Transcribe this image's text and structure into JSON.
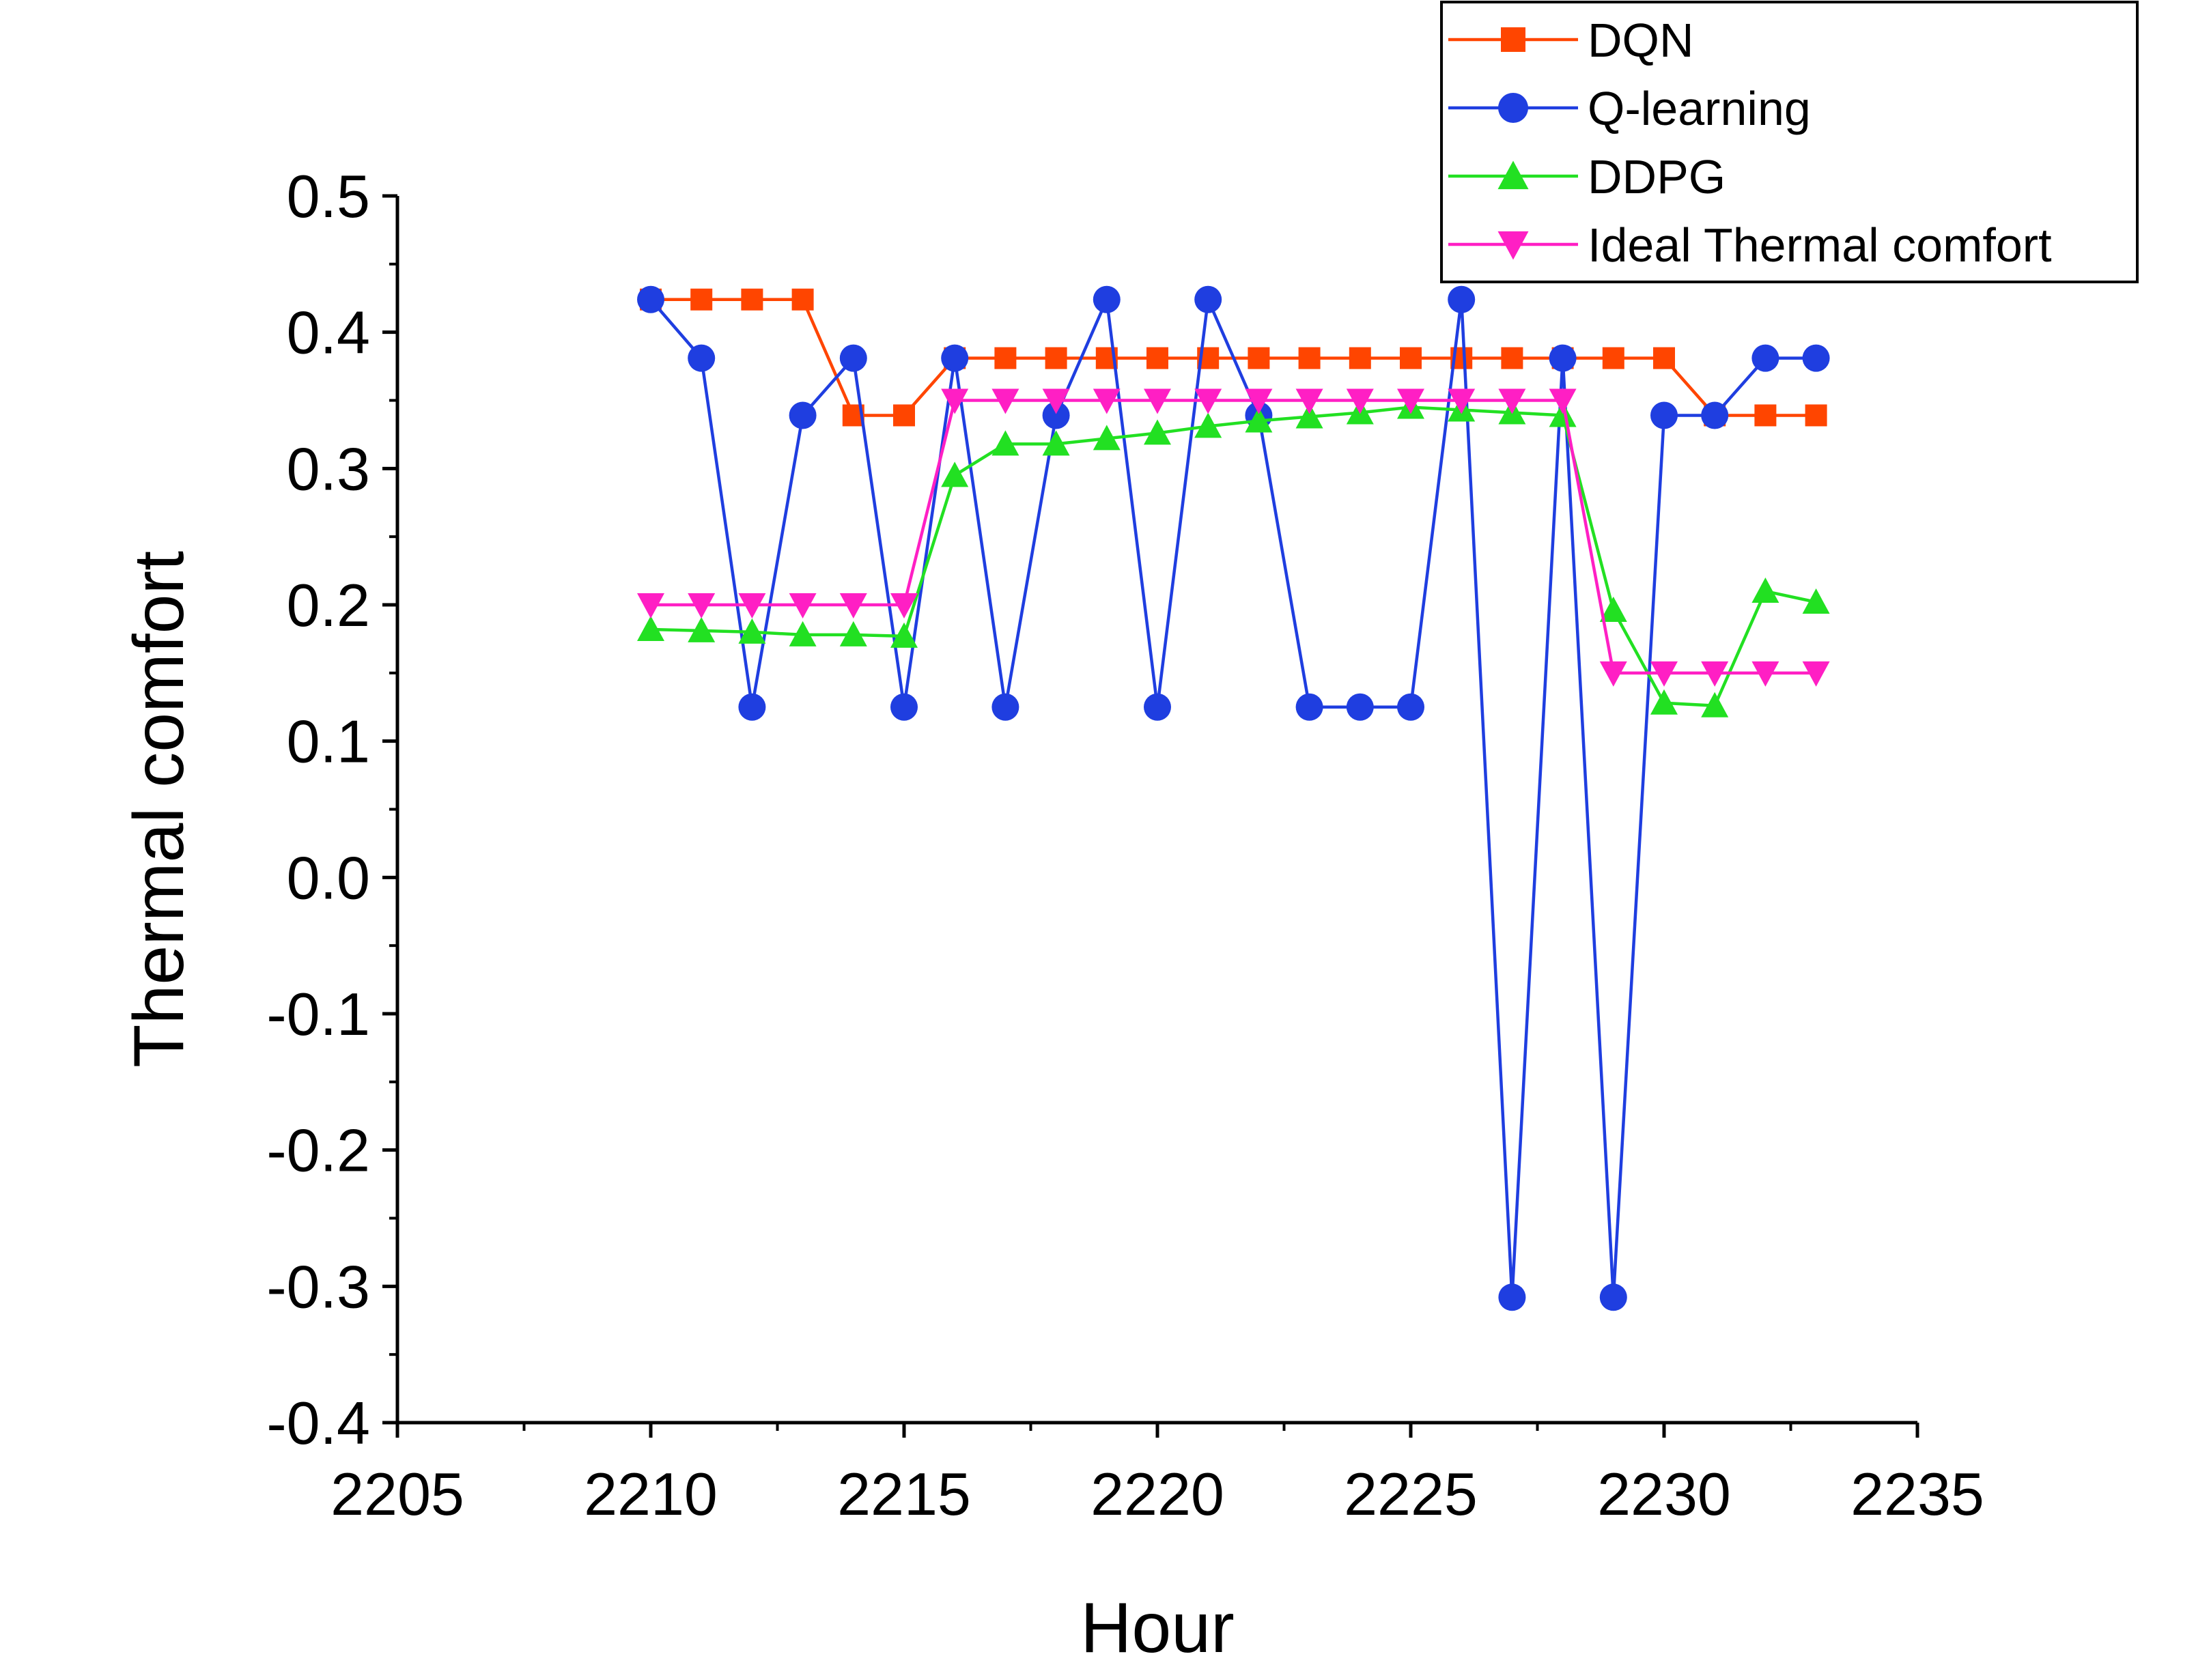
{
  "chart_data": {
    "type": "line",
    "xlabel": "Hour",
    "ylabel": "Thermal comfort",
    "xlim": [
      2205,
      2235
    ],
    "ylim": [
      -0.4,
      0.5
    ],
    "x_ticks": [
      "2205",
      "2210",
      "2215",
      "2220",
      "2225",
      "2230",
      "2235"
    ],
    "y_ticks": [
      "-0.4",
      "-0.3",
      "-0.2",
      "-0.1",
      "0.0",
      "0.1",
      "0.2",
      "0.3",
      "0.4",
      "0.5"
    ],
    "grid": false,
    "legend_position": "top-right",
    "x": [
      2210,
      2211,
      2212,
      2213,
      2214,
      2215,
      2216,
      2217,
      2218,
      2219,
      2220,
      2221,
      2222,
      2223,
      2224,
      2225,
      2226,
      2227,
      2228,
      2229,
      2230,
      2231,
      2232,
      2233
    ],
    "series": [
      {
        "name": "DQN",
        "color": "#ff4500",
        "marker": "square",
        "values": [
          0.424,
          0.424,
          0.424,
          0.424,
          0.339,
          0.339,
          0.381,
          0.381,
          0.381,
          0.381,
          0.381,
          0.381,
          0.381,
          0.381,
          0.381,
          0.381,
          0.381,
          0.381,
          0.381,
          0.381,
          0.381,
          0.339,
          0.339,
          0.339
        ]
      },
      {
        "name": "Q-learning",
        "color": "#1f3ee0",
        "marker": "circle",
        "values": [
          0.424,
          0.381,
          0.125,
          0.339,
          0.381,
          0.125,
          0.381,
          0.125,
          0.339,
          0.424,
          0.125,
          0.424,
          0.339,
          0.125,
          0.125,
          0.125,
          0.424,
          -0.308,
          0.381,
          -0.308,
          0.339,
          0.339,
          0.381,
          0.381
        ]
      },
      {
        "name": "DDPG",
        "color": "#22e022",
        "marker": "triangle-up",
        "values": [
          0.182,
          0.181,
          0.18,
          0.178,
          0.178,
          0.177,
          0.295,
          0.318,
          0.318,
          0.322,
          0.326,
          0.331,
          0.335,
          0.338,
          0.341,
          0.345,
          0.343,
          0.341,
          0.339,
          0.196,
          0.128,
          0.126,
          0.21,
          0.202
        ]
      },
      {
        "name": "Ideal Thermal comfort",
        "color": "#ff1fc4",
        "marker": "triangle-down",
        "values": [
          0.2,
          0.2,
          0.2,
          0.2,
          0.2,
          0.2,
          0.35,
          0.35,
          0.35,
          0.35,
          0.35,
          0.35,
          0.35,
          0.35,
          0.35,
          0.35,
          0.35,
          0.35,
          0.35,
          0.15,
          0.15,
          0.15,
          0.15,
          0.15
        ]
      }
    ]
  }
}
